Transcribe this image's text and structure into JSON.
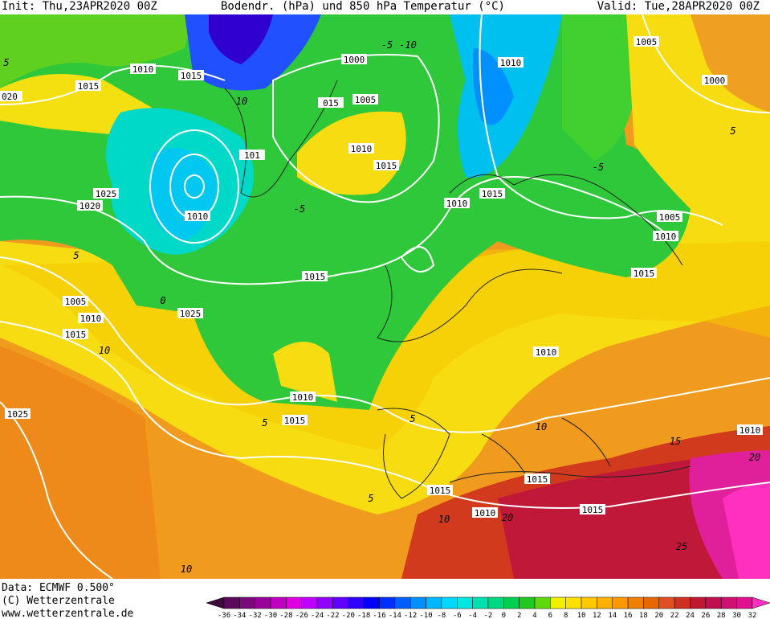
{
  "header": {
    "init": "Init: Thu,23APR2020 00Z",
    "title": "Bodendr. (hPa) und 850 hPa Temperatur (°C)",
    "valid": "Valid: Tue,28APR2020 00Z"
  },
  "footer": {
    "data": "Data: ECMWF  0.500°",
    "copyright": "(C) Wetterzentrale",
    "url": "www.wetterzentrale.de"
  },
  "isobar_labels": [
    "1010",
    "1015",
    "1015",
    "020",
    "1000",
    "1010",
    "1005",
    "1000",
    "015",
    "1005",
    "1010",
    "1015",
    "101",
    "1025",
    "1020",
    "1010",
    "1010",
    "1015",
    "1005",
    "1010",
    "1015",
    "1015",
    "1005",
    "1010",
    "1015",
    "1025",
    "1010",
    "1010",
    "1015",
    "1025",
    "1010",
    "1015",
    "1015",
    "1015",
    "1010"
  ],
  "temperature_labels": [
    "5",
    "-5",
    "-10",
    "10",
    "5",
    "-5",
    "-5",
    "5",
    "0",
    "10",
    "5",
    "5",
    "10",
    "15",
    "20",
    "20",
    "25",
    "10",
    "5",
    "10"
  ],
  "colorbar": {
    "labels": [
      -36,
      -34,
      -32,
      -30,
      -28,
      -26,
      -24,
      -22,
      -20,
      -18,
      -16,
      -14,
      -12,
      -10,
      -8,
      -6,
      -4,
      -2,
      0,
      2,
      4,
      6,
      8,
      10,
      12,
      14,
      16,
      18,
      20,
      22,
      24,
      26,
      28,
      30,
      32
    ],
    "colors": [
      "#3c0a3c",
      "#5a0a5a",
      "#7a0a7a",
      "#9a009a",
      "#c000c0",
      "#e000e0",
      "#c000ff",
      "#9000ff",
      "#6000ff",
      "#3000ff",
      "#0000ff",
      "#0030ff",
      "#0060ff",
      "#0090ff",
      "#00b8ff",
      "#00d8ff",
      "#00e8e0",
      "#00e0b0",
      "#00d880",
      "#00d050",
      "#20c820",
      "#60d810",
      "#f0f000",
      "#ffe000",
      "#ffc800",
      "#ffb000",
      "#ff9800",
      "#f08000",
      "#e86800",
      "#e05020",
      "#d03020",
      "#c01830",
      "#c01050",
      "#d01070",
      "#e01090",
      "#ff30c0"
    ]
  }
}
